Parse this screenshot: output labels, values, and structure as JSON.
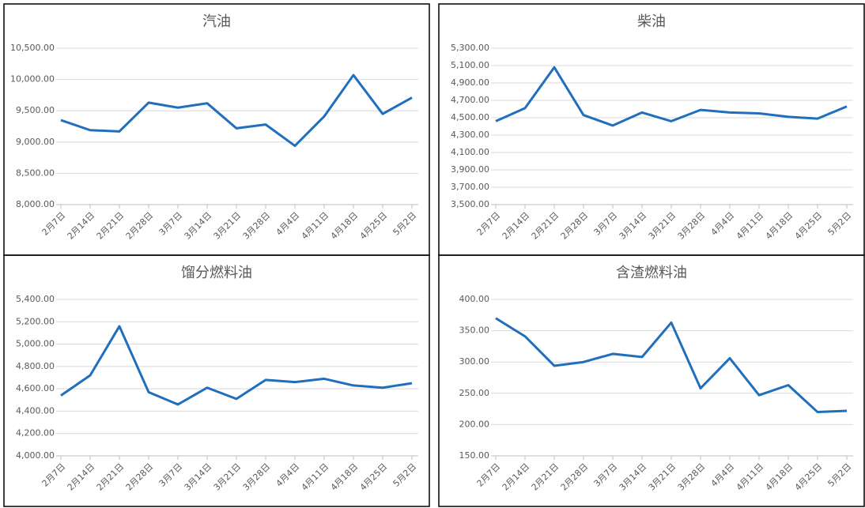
{
  "chart_data": [
    {
      "type": "line",
      "title": "汽油",
      "categories": [
        "2月7日",
        "2月14日",
        "2月21日",
        "2月28日",
        "3月7日",
        "3月14日",
        "3月21日",
        "3月28日",
        "4月4日",
        "4月11日",
        "4月18日",
        "4月25日",
        "5月2日"
      ],
      "series": [
        {
          "color": "#1f6fbd",
          "values": [
            9350,
            9190,
            9170,
            9630,
            9550,
            9620,
            9220,
            9280,
            8940,
            9410,
            10070,
            9450,
            9710
          ]
        }
      ],
      "ylim": [
        8000,
        10500
      ],
      "yticks": [
        {
          "value": 8000,
          "label": "8,000.00"
        },
        {
          "value": 8500,
          "label": "8,500.00"
        },
        {
          "value": 9000,
          "label": "9,000.00"
        },
        {
          "value": 9500,
          "label": "9,500.00"
        },
        {
          "value": 10000,
          "label": "10,000.00"
        },
        {
          "value": 10500,
          "label": "10,500.00"
        }
      ],
      "grid": true
    },
    {
      "type": "line",
      "title": "柴油",
      "categories": [
        "2月7日",
        "2月14日",
        "2月21日",
        "2月28日",
        "3月7日",
        "3月14日",
        "3月21日",
        "3月28日",
        "4月4日",
        "4月11日",
        "4月18日",
        "4月25日",
        "5月2日"
      ],
      "series": [
        {
          "color": "#1f6fbd",
          "values": [
            4460,
            4610,
            5080,
            4530,
            4410,
            4560,
            4460,
            4590,
            4560,
            4550,
            4510,
            4490,
            4630
          ]
        }
      ],
      "ylim": [
        3500,
        5300
      ],
      "yticks": [
        {
          "value": 3500,
          "label": "3,500.00"
        },
        {
          "value": 3700,
          "label": "3,700.00"
        },
        {
          "value": 3900,
          "label": "3,900.00"
        },
        {
          "value": 4100,
          "label": "4,100.00"
        },
        {
          "value": 4300,
          "label": "4,300.00"
        },
        {
          "value": 4500,
          "label": "4,500.00"
        },
        {
          "value": 4700,
          "label": "4,700.00"
        },
        {
          "value": 4900,
          "label": "4,900.00"
        },
        {
          "value": 5100,
          "label": "5,100.00"
        },
        {
          "value": 5300,
          "label": "5,300.00"
        }
      ],
      "grid": true
    },
    {
      "type": "line",
      "title": "馏分燃料油",
      "categories": [
        "2月7日",
        "2月14日",
        "2月21日",
        "2月28日",
        "3月7日",
        "3月14日",
        "3月21日",
        "3月28日",
        "4月4日",
        "4月11日",
        "4月18日",
        "4月25日",
        "5月2日"
      ],
      "series": [
        {
          "color": "#1f6fbd",
          "values": [
            4540,
            4720,
            5160,
            4570,
            4460,
            4610,
            4510,
            4680,
            4660,
            4690,
            4630,
            4610,
            4650
          ]
        }
      ],
      "ylim": [
        4000,
        5400
      ],
      "yticks": [
        {
          "value": 4000,
          "label": "4,000.00"
        },
        {
          "value": 4200,
          "label": "4,200.00"
        },
        {
          "value": 4400,
          "label": "4,400.00"
        },
        {
          "value": 4600,
          "label": "4,600.00"
        },
        {
          "value": 4800,
          "label": "4,800.00"
        },
        {
          "value": 5000,
          "label": "5,000.00"
        },
        {
          "value": 5200,
          "label": "5,200.00"
        },
        {
          "value": 5400,
          "label": "5,400.00"
        }
      ],
      "grid": true
    },
    {
      "type": "line",
      "title": "含渣燃料油",
      "categories": [
        "2月7日",
        "2月14日",
        "2月21日",
        "2月28日",
        "3月7日",
        "3月14日",
        "3月21日",
        "3月28日",
        "4月4日",
        "4月11日",
        "4月18日",
        "4月25日",
        "5月2日"
      ],
      "series": [
        {
          "color": "#1f6fbd",
          "values": [
            370,
            341,
            294,
            300,
            313,
            308,
            363,
            258,
            306,
            247,
            263,
            220,
            222
          ]
        }
      ],
      "ylim": [
        150,
        400
      ],
      "yticks": [
        {
          "value": 150,
          "label": "150.00"
        },
        {
          "value": 200,
          "label": "200.00"
        },
        {
          "value": 250,
          "label": "250.00"
        },
        {
          "value": 300,
          "label": "300.00"
        },
        {
          "value": 350,
          "label": "350.00"
        },
        {
          "value": 400,
          "label": "400.00"
        }
      ],
      "grid": true
    }
  ]
}
